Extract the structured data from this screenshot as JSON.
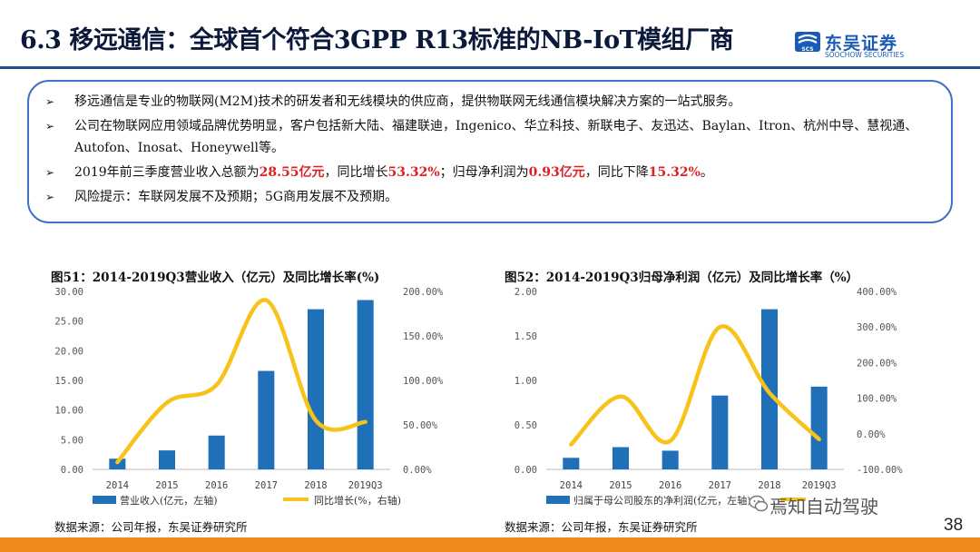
{
  "header": {
    "title": "6.3 移远通信：全球首个符合3GPP R13标准的NB-IoT模组厂商"
  },
  "logo": {
    "name": "东吴证券",
    "en": "SOOCHOW SECURITIES",
    "mark_text": "SCS"
  },
  "bullets": [
    {
      "marker": "➢",
      "parts": [
        {
          "t": "移远通信是专业的物联网(M2M)技术的研发者和无线模块的供应商，提供物联网无线通信模块解决方案的一站式服务。"
        }
      ]
    },
    {
      "marker": "➢",
      "parts": [
        {
          "t": "公司在物联网应用领域品牌优势明显，客户包括新大陆、福建联迪，Ingenico、华立科技、新联电子、友迅达、Baylan、Itron、杭州中导、慧视通、Autofon、Inosat、Honeywell等。"
        }
      ]
    },
    {
      "marker": "➢",
      "parts": [
        {
          "t": "2019年前三季度营业收入总额为"
        },
        {
          "t": "28.55亿元",
          "hl": true
        },
        {
          "t": "，同比增长"
        },
        {
          "t": "53.32%",
          "hl": true
        },
        {
          "t": "；归母净利润为"
        },
        {
          "t": "0.93亿元",
          "hl": true
        },
        {
          "t": "，同比下降"
        },
        {
          "t": "15.32%",
          "hl": true
        },
        {
          "t": "。"
        }
      ]
    },
    {
      "marker": "➢",
      "parts": [
        {
          "t": "风险提示：车联网发展不及预期；5G商用发展不及预期。"
        }
      ]
    }
  ],
  "colors": {
    "bar": "#1f70b8",
    "line": "#f7c31a",
    "accent": "#e02020",
    "box_border": "#4472c4",
    "bottom_bar": "#f08a1c"
  },
  "chart_data": [
    {
      "type": "bar",
      "title": "图51：2014-2019Q3营业收入（亿元）及同比增长率(%)",
      "categories": [
        "2014",
        "2015",
        "2016",
        "2017",
        "2018",
        "2019Q3"
      ],
      "y_ticks": [
        "0.00",
        "5.00",
        "10.00",
        "15.00",
        "20.00",
        "25.00",
        "30.00"
      ],
      "y2_ticks": [
        "0.00%",
        "50.00%",
        "100.00%",
        "150.00%",
        "200.00%"
      ],
      "ylim": [
        0,
        30
      ],
      "y2lim": [
        0,
        200
      ],
      "series": [
        {
          "name": "营业收入(亿元，左轴)",
          "kind": "bar",
          "axis": "left",
          "values": [
            1.8,
            3.2,
            5.7,
            16.6,
            27.0,
            28.55
          ]
        },
        {
          "name": "同比增长(%，右轴)",
          "kind": "line",
          "axis": "right",
          "values": [
            8,
            75,
            95,
            190,
            55,
            53.32
          ]
        }
      ],
      "source": "数据来源：公司年报，东吴证券研究所"
    },
    {
      "type": "bar",
      "title": "图52：2014-2019Q3归母净利润（亿元）及同比增长率（%）",
      "categories": [
        "2014",
        "2015",
        "2016",
        "2017",
        "2018",
        "2019Q3"
      ],
      "y_ticks": [
        "0.00",
        "0.50",
        "1.00",
        "1.50",
        "2.00"
      ],
      "y2_ticks": [
        "-100.00%",
        "0.00%",
        "100.00%",
        "200.00%",
        "300.00%",
        "400.00%"
      ],
      "ylim": [
        0,
        2
      ],
      "y2lim": [
        -100,
        400
      ],
      "series": [
        {
          "name": "归属于母公司股东的净利润(亿元，左轴)",
          "kind": "bar",
          "axis": "left",
          "values": [
            0.13,
            0.25,
            0.21,
            0.83,
            1.8,
            0.93
          ]
        },
        {
          "name": "",
          "kind": "line",
          "axis": "right",
          "values": [
            -30,
            105,
            -20,
            300,
            115,
            -15.32
          ]
        }
      ],
      "source": "数据来源：公司年报，东吴证券研究所"
    }
  ],
  "watermark": "焉知自动驾驶",
  "page_number": "38"
}
